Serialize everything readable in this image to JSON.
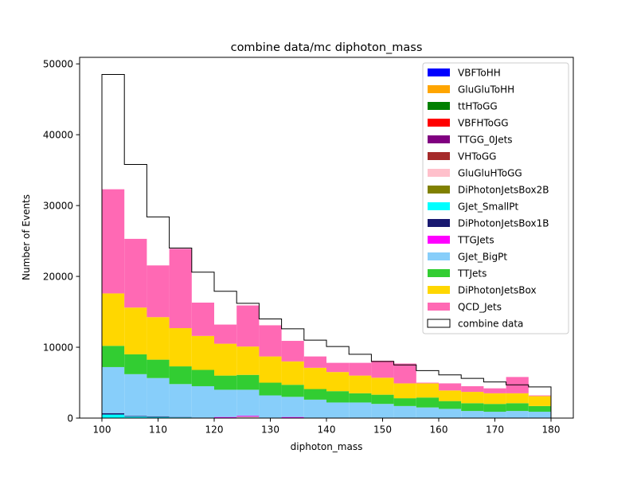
{
  "chart_data": {
    "type": "bar",
    "stacked": true,
    "title": "combine data/mc diphoton_mass",
    "xlabel": "diphoton_mass",
    "ylabel": "Number of Events",
    "xlim": [
      100,
      180
    ],
    "ylim": [
      0,
      50000
    ],
    "xticks": [
      "100",
      "110",
      "120",
      "130",
      "140",
      "150",
      "160",
      "170",
      "180"
    ],
    "yticks": [
      "0",
      "10000",
      "20000",
      "30000",
      "40000",
      "50000"
    ],
    "legend_position": "top-right",
    "bin_edges": [
      100,
      104,
      108,
      112,
      116,
      120,
      124,
      128,
      132,
      136,
      140,
      144,
      148,
      152,
      156,
      160,
      164,
      168,
      172,
      176,
      180
    ],
    "series": [
      {
        "name": "VBFToHH",
        "color": "#0000ff",
        "values": [
          0,
          0,
          0,
          0,
          0,
          0,
          0,
          0,
          0,
          0,
          0,
          0,
          0,
          0,
          0,
          0,
          0,
          0,
          0,
          0
        ]
      },
      {
        "name": "GluGluToHH",
        "color": "#ffa500",
        "values": [
          0,
          0,
          0,
          0,
          0,
          0,
          0,
          0,
          0,
          0,
          0,
          0,
          0,
          0,
          0,
          0,
          0,
          0,
          0,
          0
        ]
      },
      {
        "name": "ttHToGG",
        "color": "#008000",
        "values": [
          0,
          0,
          0,
          0,
          0,
          0,
          0,
          0,
          0,
          0,
          0,
          0,
          0,
          0,
          0,
          0,
          0,
          0,
          0,
          0
        ]
      },
      {
        "name": "VBFHToGG",
        "color": "#ff0000",
        "values": [
          0,
          0,
          0,
          0,
          0,
          0,
          0,
          0,
          0,
          0,
          0,
          0,
          0,
          0,
          0,
          0,
          0,
          0,
          0,
          0
        ]
      },
      {
        "name": "TTGG_0Jets",
        "color": "#800080",
        "values": [
          0,
          0,
          0,
          0,
          0,
          0,
          0,
          0,
          0,
          0,
          0,
          0,
          0,
          0,
          0,
          0,
          0,
          0,
          0,
          0
        ]
      },
      {
        "name": "VHToGG",
        "color": "#a52a2a",
        "values": [
          0,
          0,
          0,
          0,
          0,
          0,
          0,
          0,
          0,
          0,
          0,
          0,
          0,
          0,
          0,
          0,
          0,
          0,
          0,
          0
        ]
      },
      {
        "name": "GluGluHToGG",
        "color": "#ffc0cb",
        "values": [
          0,
          0,
          0,
          0,
          0,
          0,
          200,
          0,
          0,
          0,
          0,
          0,
          0,
          0,
          0,
          0,
          0,
          0,
          0,
          0
        ]
      },
      {
        "name": "DiPhotonJetsBox2B",
        "color": "#808000",
        "values": [
          0,
          0,
          0,
          0,
          0,
          0,
          0,
          0,
          0,
          0,
          0,
          0,
          0,
          0,
          0,
          0,
          0,
          0,
          0,
          0
        ]
      },
      {
        "name": "GJet_SmallPt",
        "color": "#00ffff",
        "values": [
          500,
          200,
          150,
          100,
          0,
          0,
          0,
          0,
          0,
          0,
          0,
          0,
          0,
          0,
          0,
          0,
          0,
          0,
          0,
          0
        ]
      },
      {
        "name": "DiPhotonJetsBox1B",
        "color": "#191970",
        "values": [
          200,
          100,
          100,
          50,
          50,
          50,
          50,
          50,
          50,
          50,
          50,
          50,
          50,
          50,
          50,
          50,
          50,
          50,
          50,
          50
        ]
      },
      {
        "name": "TTGJets",
        "color": "#ff00ff",
        "values": [
          0,
          0,
          0,
          0,
          0,
          100,
          100,
          0,
          100,
          0,
          0,
          0,
          0,
          0,
          0,
          0,
          0,
          0,
          0,
          0
        ]
      },
      {
        "name": "GJet_BigPt",
        "color": "#87cefa",
        "values": [
          6500,
          5900,
          5400,
          4650,
          4450,
          3850,
          3650,
          3150,
          2850,
          2550,
          2150,
          2150,
          1950,
          1650,
          1450,
          1250,
          950,
          850,
          950,
          850
        ]
      },
      {
        "name": "TTJets",
        "color": "#32cd32",
        "values": [
          3000,
          2800,
          2600,
          2500,
          2300,
          2000,
          2100,
          1800,
          1700,
          1500,
          1600,
          1300,
          1300,
          1100,
          1400,
          1100,
          1100,
          1100,
          1100,
          800
        ]
      },
      {
        "name": "DiPhotonJetsBox",
        "color": "#ffd700",
        "values": [
          7400,
          6600,
          6000,
          5400,
          4800,
          4500,
          4000,
          3700,
          3300,
          3000,
          2700,
          2500,
          2400,
          2100,
          2000,
          1500,
          1600,
          1500,
          1400,
          1400
        ]
      },
      {
        "name": "QCD_Jets",
        "color": "#ff69b4",
        "values": [
          14700,
          9700,
          7300,
          11200,
          4700,
          2700,
          5800,
          4400,
          2900,
          1600,
          1300,
          1800,
          2400,
          2800,
          100,
          1000,
          800,
          700,
          2300,
          100
        ]
      }
    ],
    "data_series": {
      "name": "combine data",
      "color": "#000000",
      "values": [
        48500,
        35800,
        28400,
        24000,
        20600,
        17900,
        16200,
        14000,
        12600,
        11000,
        10100,
        9000,
        8000,
        7500,
        6700,
        6100,
        5600,
        5100,
        4700,
        4400
      ]
    }
  }
}
